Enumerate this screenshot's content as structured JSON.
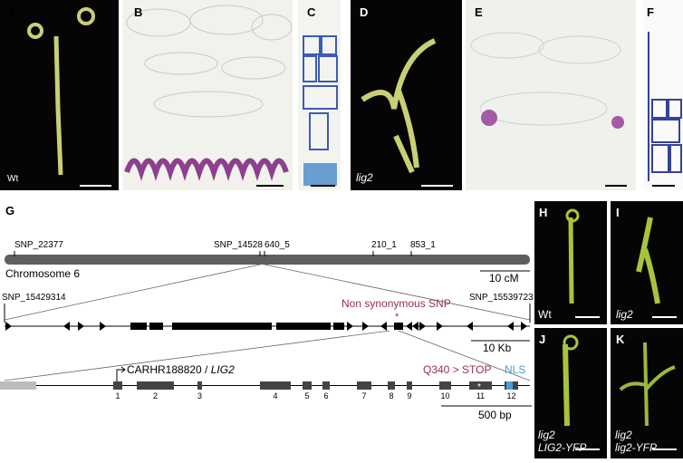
{
  "panels_top": [
    {
      "letter": "A",
      "label": "Wt"
    },
    {
      "letter": "B"
    },
    {
      "letter": "C"
    },
    {
      "letter": "D",
      "label": "lig2"
    },
    {
      "letter": "E"
    },
    {
      "letter": "F"
    }
  ],
  "panel_g": {
    "letter": "G",
    "chromosome": {
      "markers": [
        "SNP_22377",
        "SNP_14528",
        "640_5",
        "210_1",
        "853_1"
      ],
      "name": "Chromosome  6",
      "scale": "10 cM"
    },
    "region": {
      "left": "SNP_15429314",
      "right": "SNP_15539723",
      "snp_note": "Non synonymous SNP",
      "star": "*",
      "scale": "10 Kb"
    },
    "gene": {
      "name": "CARHR188820",
      "separator": " / ",
      "symbol": "LIG2",
      "exons": [
        "1",
        "2",
        "3",
        "4",
        "5",
        "6",
        "7",
        "8",
        "9",
        "10",
        "11",
        "12"
      ],
      "mutation": "Q340 > STOP",
      "star": "*",
      "domain": "NLS",
      "scale": "500 bp"
    }
  },
  "panels_right": [
    {
      "letter": "H",
      "label": "Wt"
    },
    {
      "letter": "I",
      "label": "lig2"
    },
    {
      "letter": "J",
      "label_lines": [
        "lig2",
        "LIG2-YFP"
      ]
    },
    {
      "letter": "K",
      "label_lines": [
        "lig2",
        "lig2-YFP"
      ]
    }
  ]
}
